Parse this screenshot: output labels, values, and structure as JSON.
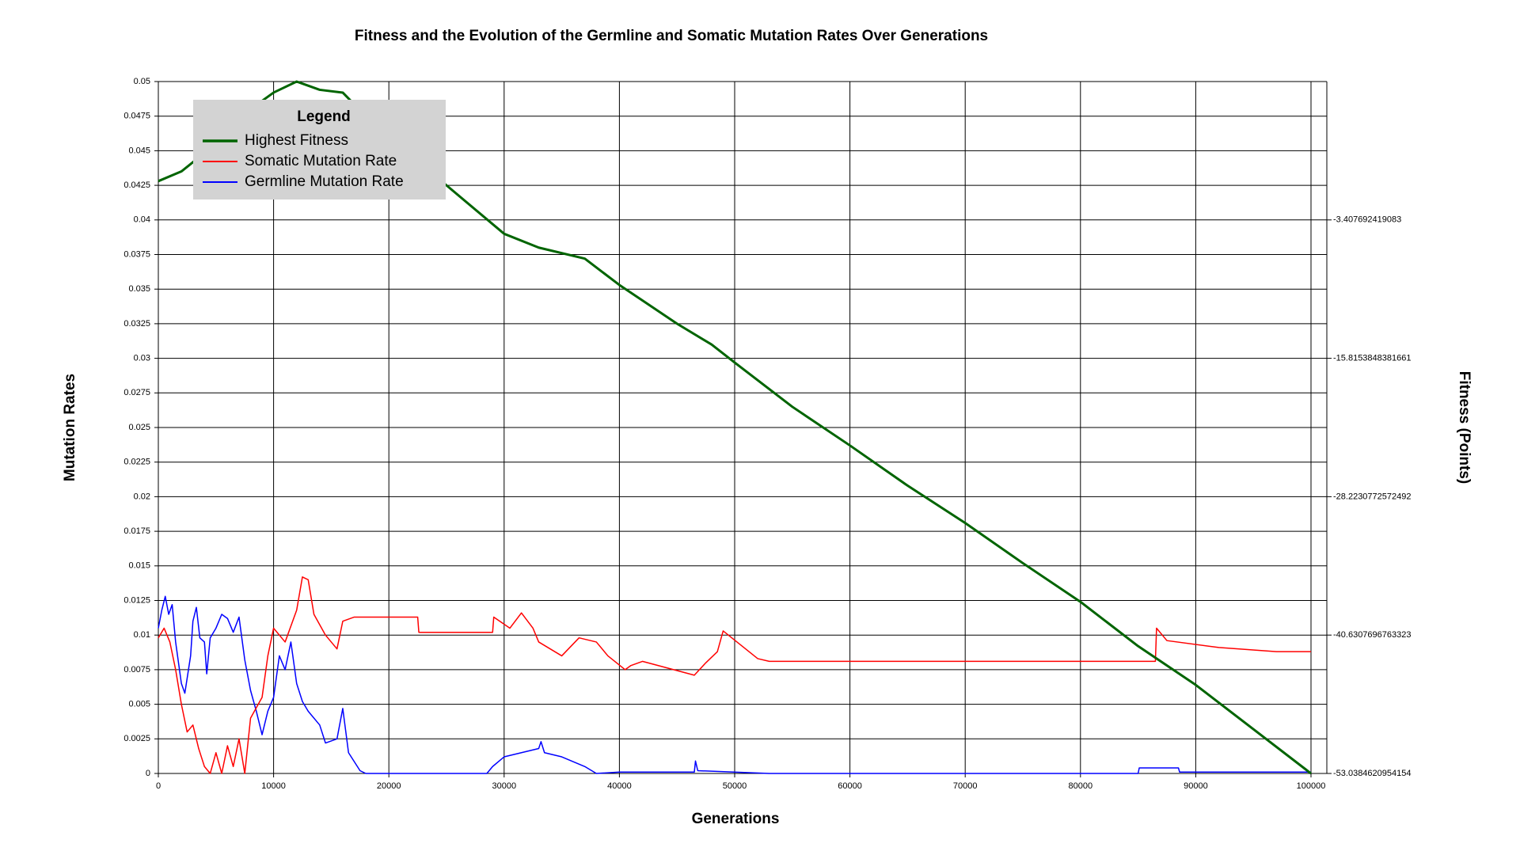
{
  "chart_data": {
    "type": "line",
    "title": "Fitness and the Evolution of the Germline and Somatic Mutation Rates Over Generations",
    "x_label": "Generations",
    "y_label": "Mutation Rates",
    "y2_label": "Fitness (Points)",
    "legend_title": "Legend",
    "legend_position": "upper left",
    "grid": true,
    "xlim": [
      0,
      100000
    ],
    "xticks": [
      0,
      10000,
      20000,
      30000,
      40000,
      50000,
      60000,
      70000,
      80000,
      90000,
      100000
    ],
    "ylim": [
      0,
      0.05
    ],
    "yticks": [
      0,
      0.0025,
      0.005,
      0.0075,
      0.01,
      0.0125,
      0.015,
      0.0175,
      0.02,
      0.0225,
      0.025,
      0.0275,
      0.03,
      0.0325,
      0.035,
      0.0375,
      0.04,
      0.0425,
      0.045,
      0.0475,
      0.05
    ],
    "y2lim": [
      -53.0384620954154,
      9.0
    ],
    "y2ticks": [
      -53.0384620954154,
      -40.6307696763323,
      -28.2230772572492,
      -15.8153848381661,
      -3.407692419083
    ],
    "series": [
      {
        "name": "Highest Fitness",
        "color": "#006400",
        "axis": "y2",
        "width": 3,
        "x": [
          0,
          2000,
          5000,
          8000,
          10000,
          12000,
          14000,
          16000,
          18000,
          20000,
          25000,
          30000,
          33000,
          37000,
          40000,
          45000,
          48000,
          50000,
          55000,
          60000,
          65000,
          70000,
          75000,
          80000,
          85000,
          90000,
          95000,
          100000
        ],
        "values": [
          0.07,
          0.94,
          3.42,
          6.52,
          8.01,
          9.0,
          8.26,
          8.01,
          5.9,
          4.04,
          -0.31,
          -4.65,
          -5.89,
          -6.88,
          -9.24,
          -12.71,
          -14.58,
          -16.19,
          -20.16,
          -23.63,
          -27.23,
          -30.58,
          -34.18,
          -37.65,
          -41.62,
          -45.1,
          -49.07,
          -53.04
        ]
      },
      {
        "name": "Somatic Mutation Rate",
        "color": "#ff0000",
        "width": 1.5,
        "x": [
          0,
          500,
          1000,
          1500,
          2000,
          2500,
          3000,
          3500,
          4000,
          4500,
          5000,
          5500,
          6000,
          6500,
          7000,
          7500,
          8000,
          9000,
          9500,
          10000,
          11000,
          12000,
          12500,
          13000,
          13500,
          14500,
          15000,
          15500,
          16000,
          17000,
          22500,
          22600,
          29000,
          29100,
          30500,
          31500,
          32500,
          33000,
          35000,
          36500,
          38000,
          39000,
          40500,
          41000,
          42000,
          46500,
          47500,
          48500,
          49000,
          50500,
          52000,
          53000,
          86500,
          86600,
          87500,
          92000,
          97000,
          100000
        ],
        "values": [
          0.0098,
          0.0105,
          0.0095,
          0.0075,
          0.005,
          0.003,
          0.0035,
          0.0018,
          0.0005,
          0,
          0.0015,
          0,
          0.002,
          0.0005,
          0.0025,
          0,
          0.004,
          0.0055,
          0.0085,
          0.0105,
          0.0095,
          0.0118,
          0.0142,
          0.014,
          0.0115,
          0.01,
          0.0095,
          0.009,
          0.011,
          0.0113,
          0.0113,
          0.0102,
          0.0102,
          0.0113,
          0.0105,
          0.0116,
          0.0105,
          0.0095,
          0.0085,
          0.0098,
          0.0095,
          0.0085,
          0.0075,
          0.0078,
          0.0081,
          0.0071,
          0.008,
          0.0088,
          0.0103,
          0.0093,
          0.0083,
          0.0081,
          0.0081,
          0.0105,
          0.0096,
          0.0091,
          0.0088,
          0.0088
        ]
      },
      {
        "name": "Germline Mutation Rate",
        "color": "#0000ff",
        "width": 1.5,
        "x": [
          0,
          300,
          600,
          900,
          1200,
          1500,
          2000,
          2300,
          2800,
          3000,
          3300,
          3600,
          4000,
          4200,
          4500,
          5000,
          5500,
          6000,
          6500,
          7000,
          7500,
          8000,
          8500,
          9000,
          9500,
          10000,
          10500,
          11000,
          11500,
          12000,
          12500,
          13000,
          14000,
          14500,
          15500,
          16000,
          16500,
          17500,
          18000,
          28500,
          29000,
          30000,
          31500,
          33000,
          33200,
          33500,
          35000,
          37000,
          38000,
          40000,
          46500,
          46600,
          46800,
          53000,
          85000,
          85100,
          88500,
          88600,
          100000
        ],
        "values": [
          0.0105,
          0.0118,
          0.0128,
          0.0115,
          0.0122,
          0.0095,
          0.0065,
          0.0058,
          0.0085,
          0.011,
          0.012,
          0.0098,
          0.0095,
          0.0072,
          0.0098,
          0.0105,
          0.0115,
          0.0112,
          0.0102,
          0.0113,
          0.0082,
          0.006,
          0.0045,
          0.0028,
          0.0045,
          0.0055,
          0.0085,
          0.0075,
          0.0095,
          0.0065,
          0.0052,
          0.0045,
          0.0035,
          0.0022,
          0.0025,
          0.0047,
          0.0015,
          0.0002,
          0,
          0,
          0.0005,
          0.0012,
          0.0015,
          0.0018,
          0.0023,
          0.0015,
          0.0012,
          0.0005,
          0,
          0.0001,
          0.0001,
          0.0009,
          0.0002,
          0,
          0,
          0.0004,
          0.0004,
          0.0001,
          0.0001
        ]
      }
    ]
  }
}
